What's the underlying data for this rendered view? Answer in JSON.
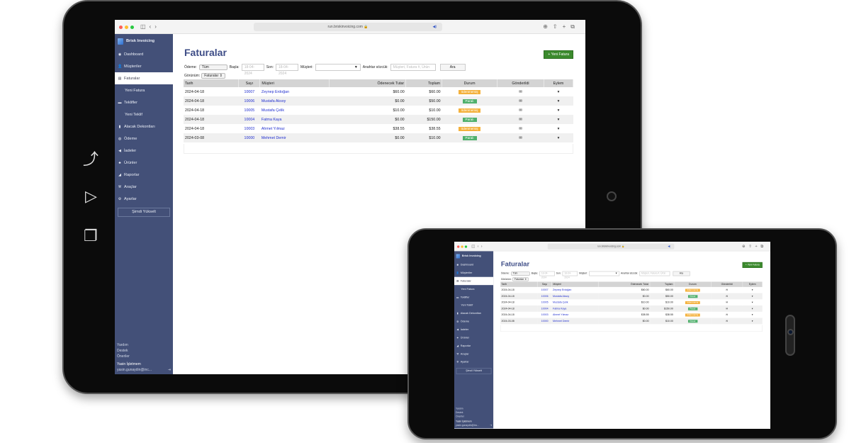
{
  "browser": {
    "url": "run.briskinvoicing.com"
  },
  "sidebar": {
    "brand": "Brisk Invoicing",
    "items": [
      {
        "label": "Dashboard",
        "icon": "gauge-icon",
        "glyph": "◉"
      },
      {
        "label": "Müşteriler",
        "icon": "user-icon",
        "glyph": "👤"
      },
      {
        "label": "Faturalar",
        "icon": "document-icon",
        "glyph": "▤",
        "active": true
      },
      {
        "label": "Yeni Fatura",
        "sub": true
      },
      {
        "label": "Teklifler",
        "icon": "chat-icon",
        "glyph": "▬"
      },
      {
        "label": "Yeni Teklif",
        "sub": true
      },
      {
        "label": "Alacak Dekontları",
        "icon": "receipt-icon",
        "glyph": "▮"
      },
      {
        "label": "Ödeme",
        "icon": "payment-icon",
        "glyph": "◍"
      },
      {
        "label": "İadeler",
        "icon": "refund-icon",
        "glyph": "◀"
      },
      {
        "label": "Ürünler",
        "icon": "products-icon",
        "glyph": "♣"
      },
      {
        "label": "Raporlar",
        "icon": "chart-icon",
        "glyph": "◢"
      },
      {
        "label": "Araçlar",
        "icon": "tools-icon",
        "glyph": "⚒"
      },
      {
        "label": "Ayarlar",
        "icon": "gear-icon",
        "glyph": "⚙"
      }
    ],
    "upgrade": "Şimdi Yükselt",
    "footer": {
      "help": "Yardım",
      "support": "Destek",
      "suggestions": "Öneriler",
      "business": "Yasin İşletmem",
      "email": "yasin.gunaydin@inc..."
    }
  },
  "page": {
    "title": "Faturalar",
    "new_button": "+ Yeni Fatura",
    "filters": {
      "payment_label": "Ödeme:",
      "payment_value": "Tüm",
      "start_label": "Başla:",
      "start_placeholder": "18-04-2024",
      "end_label": "Son:",
      "end_placeholder": "18-04-2024",
      "customer_label": "Müşteri:",
      "keyword_label": "Anahtar sözcük:",
      "keyword_placeholder": "Müşteri, Fatura #, Ürün",
      "search": "Ara"
    },
    "view_label": "Görünüm:",
    "view_value": "Faturalar"
  },
  "table": {
    "headers": [
      "Tarih",
      "Sayı",
      "Müşteri",
      "Ödenecek Tutar",
      "Toplam",
      "Durum",
      "Gönderildi",
      "Eylem"
    ],
    "rows": [
      {
        "date": "2024-04-18",
        "num": "10007",
        "customer": "Zeynep Erdoğan",
        "due": "$60.00",
        "total": "$60.00",
        "status": "ödenmemiş"
      },
      {
        "date": "2024-04-18",
        "num": "10006",
        "customer": "Mustafa Aksoy",
        "due": "$0.00",
        "total": "$50.00",
        "status": "Paralı"
      },
      {
        "date": "2024-04-18",
        "num": "10005",
        "customer": "Mustafa Çelik",
        "due": "$10.00",
        "total": "$10.00",
        "status": "ödenmemiş"
      },
      {
        "date": "2024-04-18",
        "num": "10004",
        "customer": "Fatma Kaya",
        "due": "$0.00",
        "total": "$150.00",
        "status": "Paralı"
      },
      {
        "date": "2024-04-18",
        "num": "10003",
        "customer": "Ahmet Yılmaz",
        "due": "$38.55",
        "total": "$38.55",
        "status": "ödenmemiş"
      },
      {
        "date": "2024-03-08",
        "num": "10000",
        "customer": "Mehmet Demir",
        "due": "$0.00",
        "total": "$10.00",
        "status": "Paralı"
      }
    ],
    "status_colors": {
      "ödenmemiş": "#f4b13c",
      "Paralı": "#4fb06c"
    }
  },
  "colors": {
    "sidebar": "#435078",
    "title": "#3d4c86",
    "accent": "#3b8a2d"
  }
}
